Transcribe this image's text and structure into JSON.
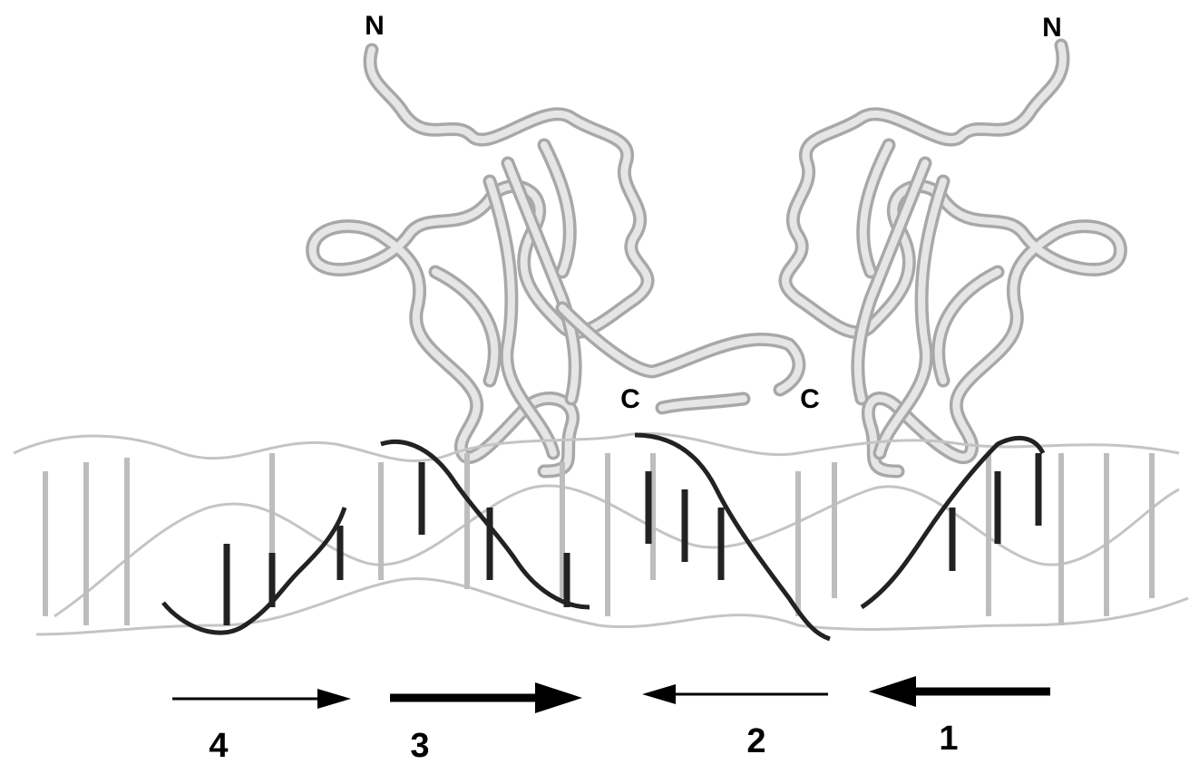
{
  "termini": [
    "N",
    "N",
    "C",
    "C"
  ],
  "site_labels": [
    "4",
    "3",
    "2",
    "1"
  ]
}
